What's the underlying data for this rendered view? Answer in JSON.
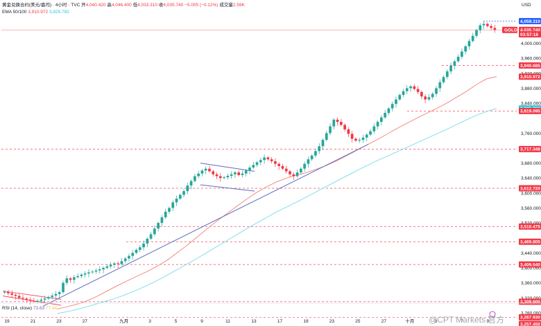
{
  "header": {
    "title": "黄金兑换合约(美元/盎司) · 4小时 · TVC",
    "open_label": "开",
    "open": "4,040.420",
    "high_label": "高",
    "high": "4,046.400",
    "low_label": "低",
    "low": "4,033.310",
    "close_label": "收",
    "close": "4,035.740",
    "change": "−5.005 (−0.12%)",
    "volume_label": "成交量",
    "volume": "2.59K"
  },
  "ema": {
    "label": "EMA 50/100",
    "ema50": "3,910.972",
    "ema100": "3,825.782"
  },
  "rsi": {
    "label": "RSI (14, close)",
    "value1": "73.63",
    "value2": "77.44"
  },
  "axis_title": "USD",
  "watermark": "@CPT Markets 官方",
  "colors": {
    "up": "#26a69a",
    "down": "#f23645",
    "ema50": "#f28b82",
    "ema100": "#80deea",
    "trendline": "#5c6bc0",
    "hline": "#f23645",
    "blue_label": "#2962ff",
    "teal_label": "#26c6da"
  },
  "chart_data": {
    "type": "candlestick",
    "symbol": "GOLD",
    "ylim": [
      3265,
      4075
    ],
    "y_ticks": [
      {
        "v": 4000,
        "t": "4,000.000"
      },
      {
        "v": 3960,
        "t": "3,960.000"
      },
      {
        "v": 3920,
        "t": "3,920.000"
      },
      {
        "v": 3880,
        "t": "3,880.000"
      },
      {
        "v": 3840,
        "t": "3,840.000"
      },
      {
        "v": 3760,
        "t": "3,760.000"
      },
      {
        "v": 3680,
        "t": "3,680.000"
      },
      {
        "v": 3640,
        "t": "3,640.000"
      },
      {
        "v": 3600,
        "t": "3,600.000"
      },
      {
        "v": 3560,
        "t": "3,560.000"
      },
      {
        "v": 3520,
        "t": "3,520.000"
      },
      {
        "v": 3440,
        "t": "3,440.000"
      },
      {
        "v": 3400,
        "t": "3,400.000"
      },
      {
        "v": 3360,
        "t": "3,360.000"
      },
      {
        "v": 3320,
        "t": "3,320.000"
      },
      {
        "v": 3280,
        "t": "3,280.000"
      }
    ],
    "price_labels": [
      {
        "v": 4059.31,
        "t": "4,059.310",
        "style": "blue"
      },
      {
        "v": 4035.74,
        "t": "4,035.740",
        "style": "red"
      },
      {
        "v": 4024,
        "t": "03:57:18",
        "style": "red"
      },
      {
        "v": 3940.685,
        "t": "3,940.685",
        "style": "red"
      },
      {
        "v": 3910.972,
        "t": "3,910.972",
        "style": "red"
      },
      {
        "v": 3825.782,
        "t": "3,825.782",
        "style": "teal"
      },
      {
        "v": 3819.095,
        "t": "3,819.095",
        "style": "red"
      },
      {
        "v": 3717.348,
        "t": "3,717.348",
        "style": "red"
      },
      {
        "v": 3612.72,
        "t": "3,612.720",
        "style": "red"
      },
      {
        "v": 3510.475,
        "t": "3,510.475",
        "style": "red"
      },
      {
        "v": 3469.805,
        "t": "3,469.805",
        "style": "red"
      },
      {
        "v": 3409.04,
        "t": "3,409.040",
        "style": "red"
      },
      {
        "v": 3309.6,
        "t": "3,309.600",
        "style": "red"
      },
      {
        "v": 3267.93,
        "t": "3,267.930",
        "style": "red"
      },
      {
        "v": 3250.0,
        "t": "3,257.450",
        "style": "red"
      }
    ],
    "hlines": [
      {
        "v": 4035.74,
        "x0": 0
      },
      {
        "v": 3940.685,
        "x0": 635
      },
      {
        "v": 3819.095,
        "x0": 585
      },
      {
        "v": 3717.348,
        "x0": 0
      },
      {
        "v": 3612.72,
        "x0": 0
      },
      {
        "v": 3510.475,
        "x0": 0
      },
      {
        "v": 3469.805,
        "x0": 180
      },
      {
        "v": 3409.04,
        "x0": 0
      },
      {
        "v": 3309.6,
        "x0": 0
      },
      {
        "v": 3267.93,
        "x0": 0
      }
    ],
    "x_labels": [
      {
        "d": 0,
        "t": "19"
      },
      {
        "d": 2,
        "t": "21"
      },
      {
        "d": 4,
        "t": "23"
      },
      {
        "d": 6,
        "t": "27"
      },
      {
        "d": 9,
        "t": "九月"
      },
      {
        "d": 11,
        "t": "3"
      },
      {
        "d": 13,
        "t": "5"
      },
      {
        "d": 15,
        "t": "9"
      },
      {
        "d": 17,
        "t": "11"
      },
      {
        "d": 19,
        "t": "13"
      },
      {
        "d": 21,
        "t": "17"
      },
      {
        "d": 23,
        "t": "19"
      },
      {
        "d": 25,
        "t": "23"
      },
      {
        "d": 27,
        "t": "25"
      },
      {
        "d": 29,
        "t": "27"
      },
      {
        "d": 31,
        "t": "十月"
      },
      {
        "d": 33,
        "t": "3"
      },
      {
        "d": 35,
        "t": "7"
      },
      {
        "d": 37,
        "t": "9"
      }
    ],
    "closes": [
      3336,
      3332,
      3328,
      3325,
      3320,
      3318,
      3315,
      3312,
      3310,
      3312,
      3315,
      3318,
      3322,
      3326,
      3330,
      3335,
      3360,
      3372,
      3368,
      3375,
      3378,
      3382,
      3385,
      3388,
      3390,
      3393,
      3396,
      3400,
      3404,
      3408,
      3412,
      3410,
      3418,
      3425,
      3432,
      3440,
      3448,
      3455,
      3465,
      3478,
      3490,
      3505,
      3520,
      3535,
      3550,
      3560,
      3575,
      3585,
      3595,
      3605,
      3620,
      3632,
      3645,
      3652,
      3660,
      3665,
      3658,
      3650,
      3645,
      3640,
      3642,
      3646,
      3650,
      3655,
      3648,
      3652,
      3660,
      3668,
      3675,
      3682,
      3688,
      3695,
      3690,
      3685,
      3678,
      3672,
      3665,
      3658,
      3650,
      3645,
      3655,
      3665,
      3678,
      3690,
      3700,
      3712,
      3725,
      3742,
      3760,
      3778,
      3796,
      3790,
      3782,
      3770,
      3758,
      3745,
      3740,
      3742,
      3748,
      3756,
      3765,
      3778,
      3790,
      3802,
      3814,
      3826,
      3838,
      3850,
      3862,
      3872,
      3880,
      3885,
      3878,
      3870,
      3858,
      3850,
      3856,
      3865,
      3880,
      3896,
      3910,
      3925,
      3940,
      3952,
      3964,
      3978,
      3992,
      4006,
      4020,
      4035,
      4048,
      4052,
      4046,
      4041,
      4036
    ],
    "ema50": [
      3290,
      3296,
      3303,
      3312,
      3324,
      3338,
      3352,
      3365,
      3378,
      3390,
      3404,
      3420,
      3440,
      3460,
      3482,
      3504,
      3525,
      3545,
      3565,
      3584,
      3602,
      3617,
      3630,
      3640,
      3648,
      3655,
      3664,
      3674,
      3686,
      3700,
      3714,
      3728,
      3742,
      3757,
      3772,
      3786,
      3800,
      3813,
      3826,
      3840,
      3856,
      3872,
      3890,
      3905,
      3911
    ],
    "ema100": [
      3278,
      3283,
      3289,
      3296,
      3304,
      3312,
      3320,
      3330,
      3341,
      3353,
      3366,
      3380,
      3395,
      3410,
      3425,
      3441,
      3457,
      3473,
      3489,
      3505,
      3520,
      3535,
      3550,
      3563,
      3576,
      3590,
      3604,
      3618,
      3632,
      3646,
      3660,
      3673,
      3686,
      3698,
      3710,
      3722,
      3734,
      3746,
      3758,
      3770,
      3783,
      3796,
      3808,
      3818,
      3826
    ],
    "trendlines": [
      {
        "p": [
          [
            0.0,
            3338
          ],
          [
            0.118,
            3316
          ]
        ],
        "c": "#f23645",
        "w": 0.8
      },
      {
        "p": [
          [
            0.0,
            3325
          ],
          [
            0.118,
            3300
          ]
        ],
        "c": "#f23645",
        "w": 0.8
      },
      {
        "p": [
          [
            0.082,
            3298
          ],
          [
            0.74,
            3730
          ]
        ],
        "c": "#5c6bc0",
        "w": 1
      },
      {
        "p": [
          [
            0.4,
            3680
          ],
          [
            0.51,
            3658
          ]
        ],
        "c": "#5c6bc0",
        "w": 1
      },
      {
        "p": [
          [
            0.4,
            3622
          ],
          [
            0.51,
            3605
          ]
        ],
        "c": "#5c6bc0",
        "w": 1
      }
    ]
  }
}
